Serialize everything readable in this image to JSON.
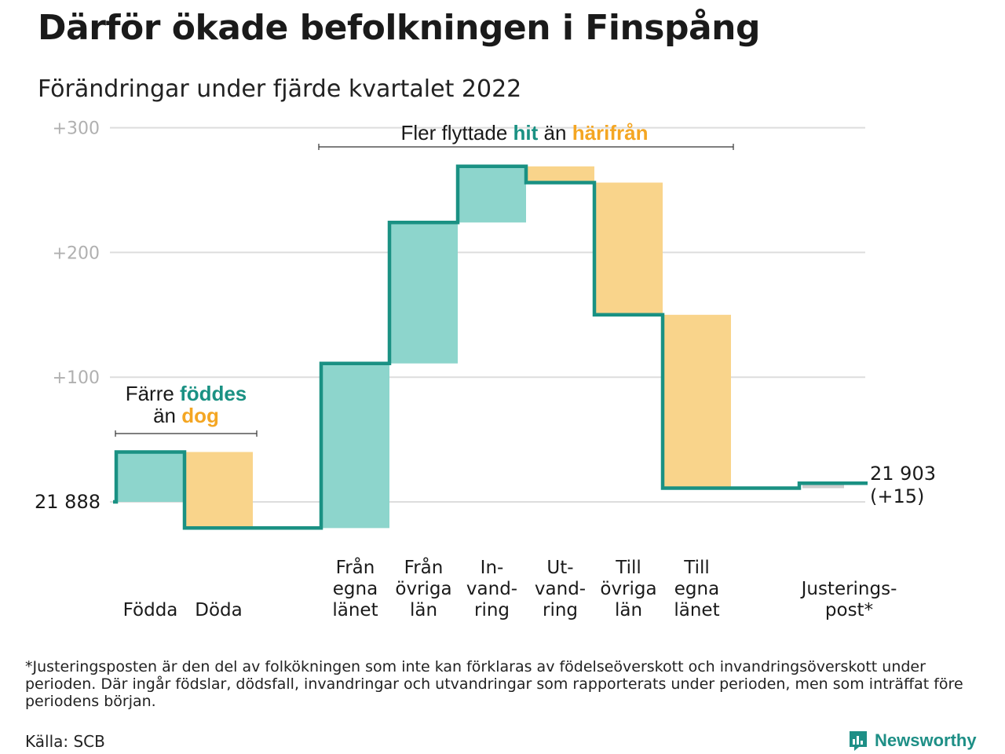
{
  "title": "Därför ökade befolkningen i Finspång",
  "subtitle": "Förändringar under fjärde kvartalet 2022",
  "chart_data": {
    "type": "waterfall",
    "start_value": 21888,
    "start_label": "21 888",
    "end_label_line1": "21 903",
    "end_label_line2": "(+15)",
    "ylim": [
      -40,
      310
    ],
    "yticks": [
      {
        "value": 100,
        "label": "+100"
      },
      {
        "value": 200,
        "label": "+200"
      },
      {
        "value": 300,
        "label": "+300"
      }
    ],
    "steps": [
      {
        "label_lines": [
          "Födda"
        ],
        "change": 40,
        "kind": "in"
      },
      {
        "label_lines": [
          "Döda"
        ],
        "change": -61,
        "kind": "out"
      },
      {
        "label_lines": [
          ""
        ],
        "change": 0,
        "kind": "gap"
      },
      {
        "label_lines": [
          "Från",
          "egna",
          "länet"
        ],
        "change": 132,
        "kind": "in"
      },
      {
        "label_lines": [
          "Från",
          "övriga",
          "län"
        ],
        "change": 113,
        "kind": "in"
      },
      {
        "label_lines": [
          "In-",
          "vand-",
          "ring"
        ],
        "change": 45,
        "kind": "in"
      },
      {
        "label_lines": [
          "Ut-",
          "vand-",
          "ring"
        ],
        "change": -13,
        "kind": "out"
      },
      {
        "label_lines": [
          "Till",
          "övriga",
          "län"
        ],
        "change": -106,
        "kind": "out"
      },
      {
        "label_lines": [
          "Till",
          "egna",
          "länet"
        ],
        "change": -139,
        "kind": "out"
      },
      {
        "label_lines": [
          ""
        ],
        "change": 0,
        "kind": "gap"
      },
      {
        "label_lines": [
          "Justerings-",
          "post*"
        ],
        "change": 4,
        "kind": "adj"
      }
    ],
    "annotations": {
      "left_line1": "Färre",
      "left_in_word": "föddes",
      "left_line2_prefix": "än",
      "left_out_word": "dog",
      "right_prefix": "Fler flyttade",
      "right_in_word": "hit",
      "right_mid": "än",
      "right_out_word": "härifrån"
    },
    "colors": {
      "in_fill": "#8dd5cc",
      "out_fill": "#f9d48b",
      "adj_fill": "#cccccc",
      "line": "#1a9183",
      "in_text": "#1a9183",
      "out_text": "#f4a623",
      "grid": "#dddddd",
      "tick_text": "#b0b0b0"
    }
  },
  "footnote": "*Justeringsposten är den del av folkökningen som inte kan förklaras av födelseöverskott och invandringsöverskott under perioden. Där ingår födslar, dödsfall, invandringar och utvandringar som rapporterats under perioden, men som inträffat före periodens början.",
  "source": "Källa: SCB",
  "brand": {
    "name": "Newsworthy",
    "icon": "newsworthy-logo-icon"
  }
}
